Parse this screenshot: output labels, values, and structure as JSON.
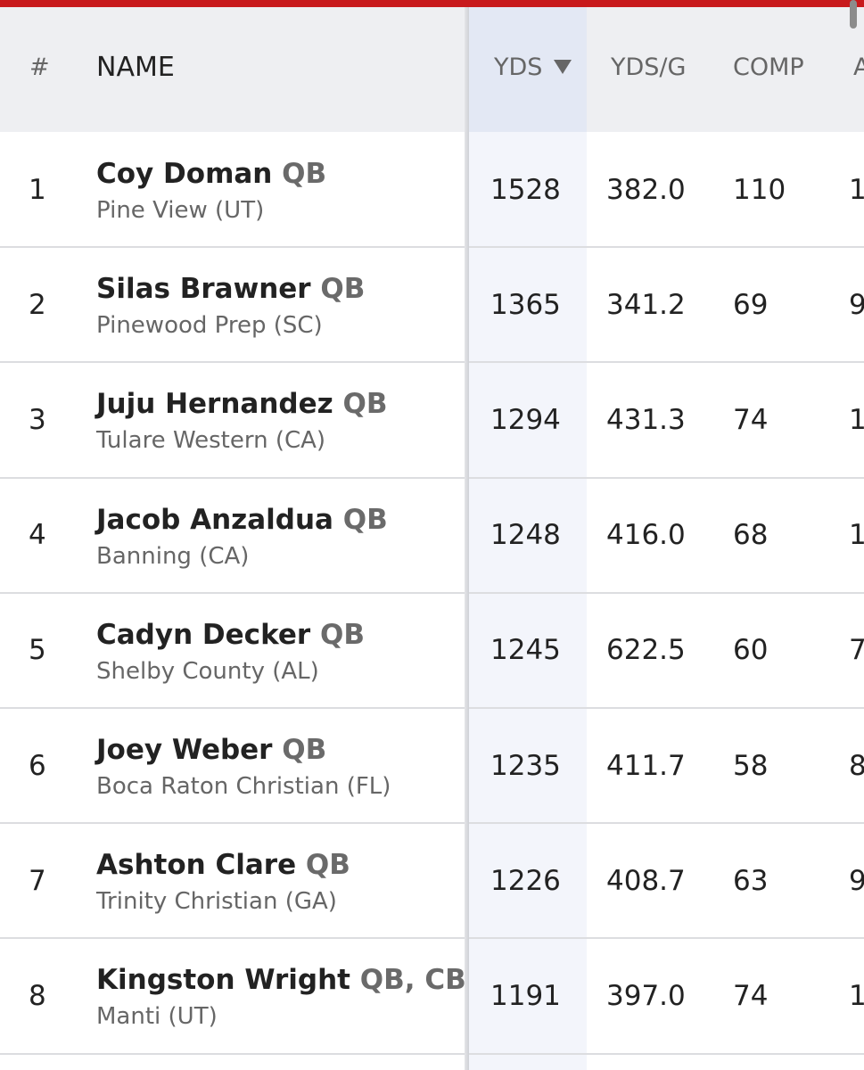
{
  "table": {
    "columns": [
      "#",
      "NAME",
      "YDS",
      "YDS/G",
      "COMP",
      "A"
    ],
    "rows": [
      {
        "rank": "1",
        "name": "Coy Doman",
        "position": "QB",
        "school": "Pine View (UT)",
        "yds": "1528",
        "yds_per_game": "382.0",
        "comp": "110",
        "clipped": "1"
      },
      {
        "rank": "2",
        "name": "Silas Brawner",
        "position": "QB",
        "school": "Pinewood Prep (SC)",
        "yds": "1365",
        "yds_per_game": "341.2",
        "comp": "69",
        "clipped": "9"
      },
      {
        "rank": "3",
        "name": "Juju Hernandez",
        "position": "QB",
        "school": "Tulare Western (CA)",
        "yds": "1294",
        "yds_per_game": "431.3",
        "comp": "74",
        "clipped": "1"
      },
      {
        "rank": "4",
        "name": "Jacob Anzaldua",
        "position": "QB",
        "school": "Banning (CA)",
        "yds": "1248",
        "yds_per_game": "416.0",
        "comp": "68",
        "clipped": "1"
      },
      {
        "rank": "5",
        "name": "Cadyn Decker",
        "position": "QB",
        "school": "Shelby County (AL)",
        "yds": "1245",
        "yds_per_game": "622.5",
        "comp": "60",
        "clipped": "7"
      },
      {
        "rank": "6",
        "name": "Joey Weber",
        "position": "QB",
        "school": "Boca Raton Christian (FL)",
        "yds": "1235",
        "yds_per_game": "411.7",
        "comp": "58",
        "clipped": "8"
      },
      {
        "rank": "7",
        "name": "Ashton Clare",
        "position": "QB",
        "school": "Trinity Christian (GA)",
        "yds": "1226",
        "yds_per_game": "408.7",
        "comp": "63",
        "clipped": "9"
      },
      {
        "rank": "8",
        "name": "Kingston Wright",
        "position": "QB, CB",
        "school": "Manti (UT)",
        "yds": "1191",
        "yds_per_game": "397.0",
        "comp": "74",
        "clipped": "1"
      }
    ]
  }
}
